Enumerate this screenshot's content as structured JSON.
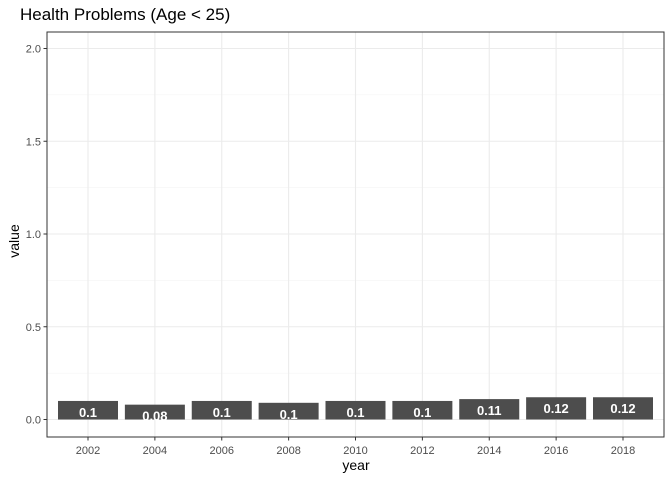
{
  "chart_data": {
    "type": "bar",
    "title": "Health Problems (Age < 25)",
    "xlabel": "year",
    "ylabel": "value",
    "categories": [
      "2002",
      "2004",
      "2006",
      "2008",
      "2010",
      "2012",
      "2014",
      "2016",
      "2018"
    ],
    "values": [
      0.1,
      0.08,
      0.1,
      0.09,
      0.1,
      0.1,
      0.11,
      0.12,
      0.12
    ],
    "data_labels": [
      "0.1",
      "0.08",
      "0.1",
      "0.1",
      "0.1",
      "0.1",
      "0.11",
      "0.12",
      "0.12"
    ],
    "x_ticks": [
      "2002",
      "2004",
      "2006",
      "2008",
      "2010",
      "2012",
      "2014",
      "2016",
      "2018"
    ],
    "ylim": [
      0,
      2.0
    ],
    "y_ticks": [
      "0.0",
      "0.5",
      "1.0",
      "1.5",
      "2.0"
    ],
    "grid": true,
    "legend": "none",
    "colors": {
      "bar": "#4d4d4d",
      "grid": "#ebebeb",
      "panel_border": "#333333",
      "data_label": "#ffffff"
    }
  }
}
